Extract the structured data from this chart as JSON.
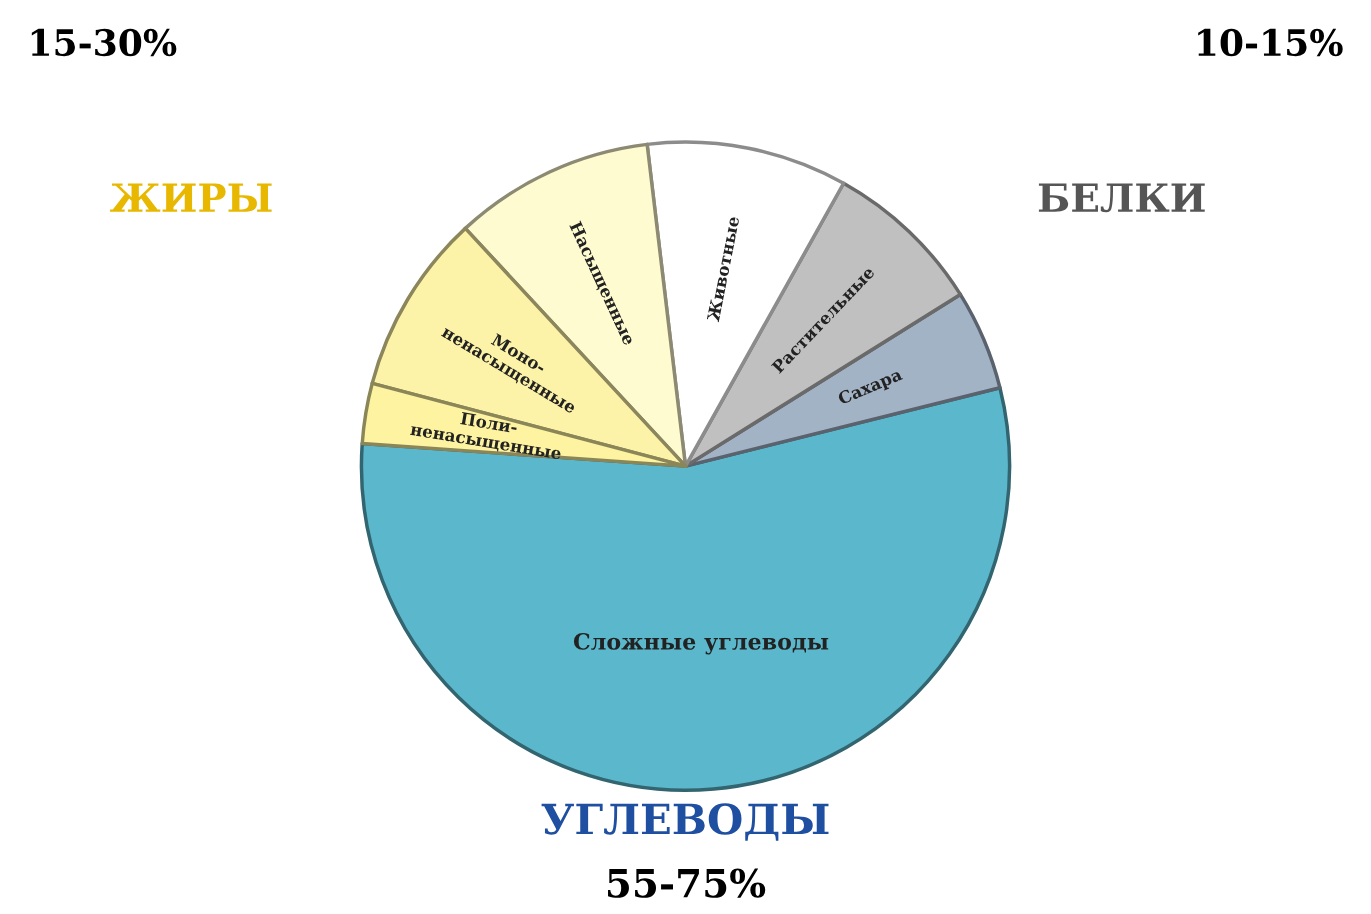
{
  "chart_data": {
    "type": "pie",
    "categories": [
      "Сложные углеводы",
      "Сахара",
      "Растительные",
      "Животные",
      "Насыщенные",
      "Моно-\nненасыщенные",
      "Поли-\nненасыщенные"
    ],
    "values": [
      55,
      5,
      8,
      10,
      10,
      9,
      3
    ],
    "colors": [
      "#5bb8cc",
      "#a3b3c6",
      "#c0c0c0",
      "#ffffff",
      "#fffbd0",
      "#fdf3a8",
      "#fdf3a0"
    ],
    "annotations": [
      "ЖИРЫ",
      "15-30%",
      "БЕЛКИ",
      "10-15%",
      "УГЛЕВОДЫ",
      "55-75%"
    ]
  }
}
